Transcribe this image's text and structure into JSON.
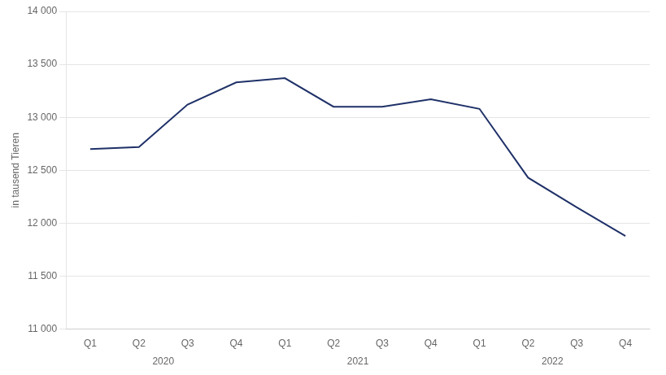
{
  "chart_data": {
    "type": "line",
    "categories": [
      "Q1",
      "Q2",
      "Q3",
      "Q4",
      "Q1",
      "Q2",
      "Q3",
      "Q4",
      "Q1",
      "Q2",
      "Q3",
      "Q4"
    ],
    "values": [
      12700,
      12720,
      13120,
      13330,
      13370,
      13100,
      13100,
      13170,
      13080,
      12430,
      12150,
      11880
    ],
    "color": "#1f3168",
    "y_label": "in tausend Tieren",
    "ylim": [
      11000,
      14000
    ],
    "yticks": [
      {
        "value": 11000,
        "label": "11 000"
      },
      {
        "value": 11500,
        "label": "11 500"
      },
      {
        "value": 12000,
        "label": "12 000"
      },
      {
        "value": 12500,
        "label": "12 500"
      },
      {
        "value": 13000,
        "label": "13 000"
      },
      {
        "value": 13500,
        "label": "13 500"
      },
      {
        "value": 14000,
        "label": "14 000"
      }
    ],
    "annotations": [
      {
        "text": "2020",
        "x": 1.5
      },
      {
        "text": "2021",
        "x": 5.5
      },
      {
        "text": "2022",
        "x": 9.5
      }
    ],
    "grid": true
  }
}
